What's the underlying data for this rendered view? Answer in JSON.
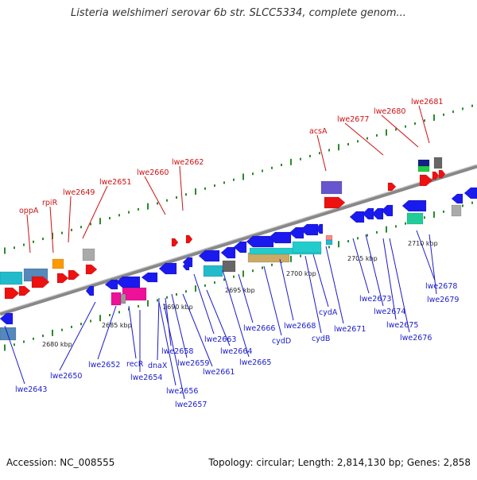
{
  "title": "Listeria welshimeri serovar 6b str. SLCC5334, complete genom...",
  "footer": {
    "accession": "Accession: NC_008555",
    "summary": "Topology: circular; Length: 2,814,130 bp; Genes: 2,858"
  },
  "colors": {
    "axis": "#888888",
    "tick": "#2a8a2a",
    "label_blue": "#1a1acc",
    "label_red": "#cc1111",
    "gene_blue": "#1a1aee",
    "gene_red": "#ee1111",
    "gene_cyan": "#22cccc",
    "gene_magenta": "#ee1199",
    "gene_gray": "#777777"
  },
  "scale": {
    "ticks_kbp": [
      "2680 kbp",
      "2685 kbp",
      "2690 kbp",
      "2695 kbp",
      "2700 kbp",
      "2705 kbp",
      "2710 kbp"
    ]
  },
  "labels_red": [
    "oppA",
    "rpiR",
    "lwe2649",
    "lwe2651",
    "lwe2660",
    "lwe2662",
    "acsA",
    "lwe2677",
    "lwe2680",
    "lwe2681"
  ],
  "labels_blue": [
    "lwe2643",
    "lwe2650",
    "lwe2652",
    "recR",
    "lwe2654",
    "dnaX",
    "lwe2656",
    "lwe2657",
    "lwe2658",
    "lwe2659",
    "lwe2661",
    "lwe2663",
    "lwe2664",
    "lwe2665",
    "lwe2666",
    "cydD",
    "lwe2668",
    "cydB",
    "cydA",
    "lwe2671",
    "lwe2673",
    "lwe2674",
    "lwe2675",
    "lwe2676",
    "lwe2678",
    "lwe2679"
  ]
}
